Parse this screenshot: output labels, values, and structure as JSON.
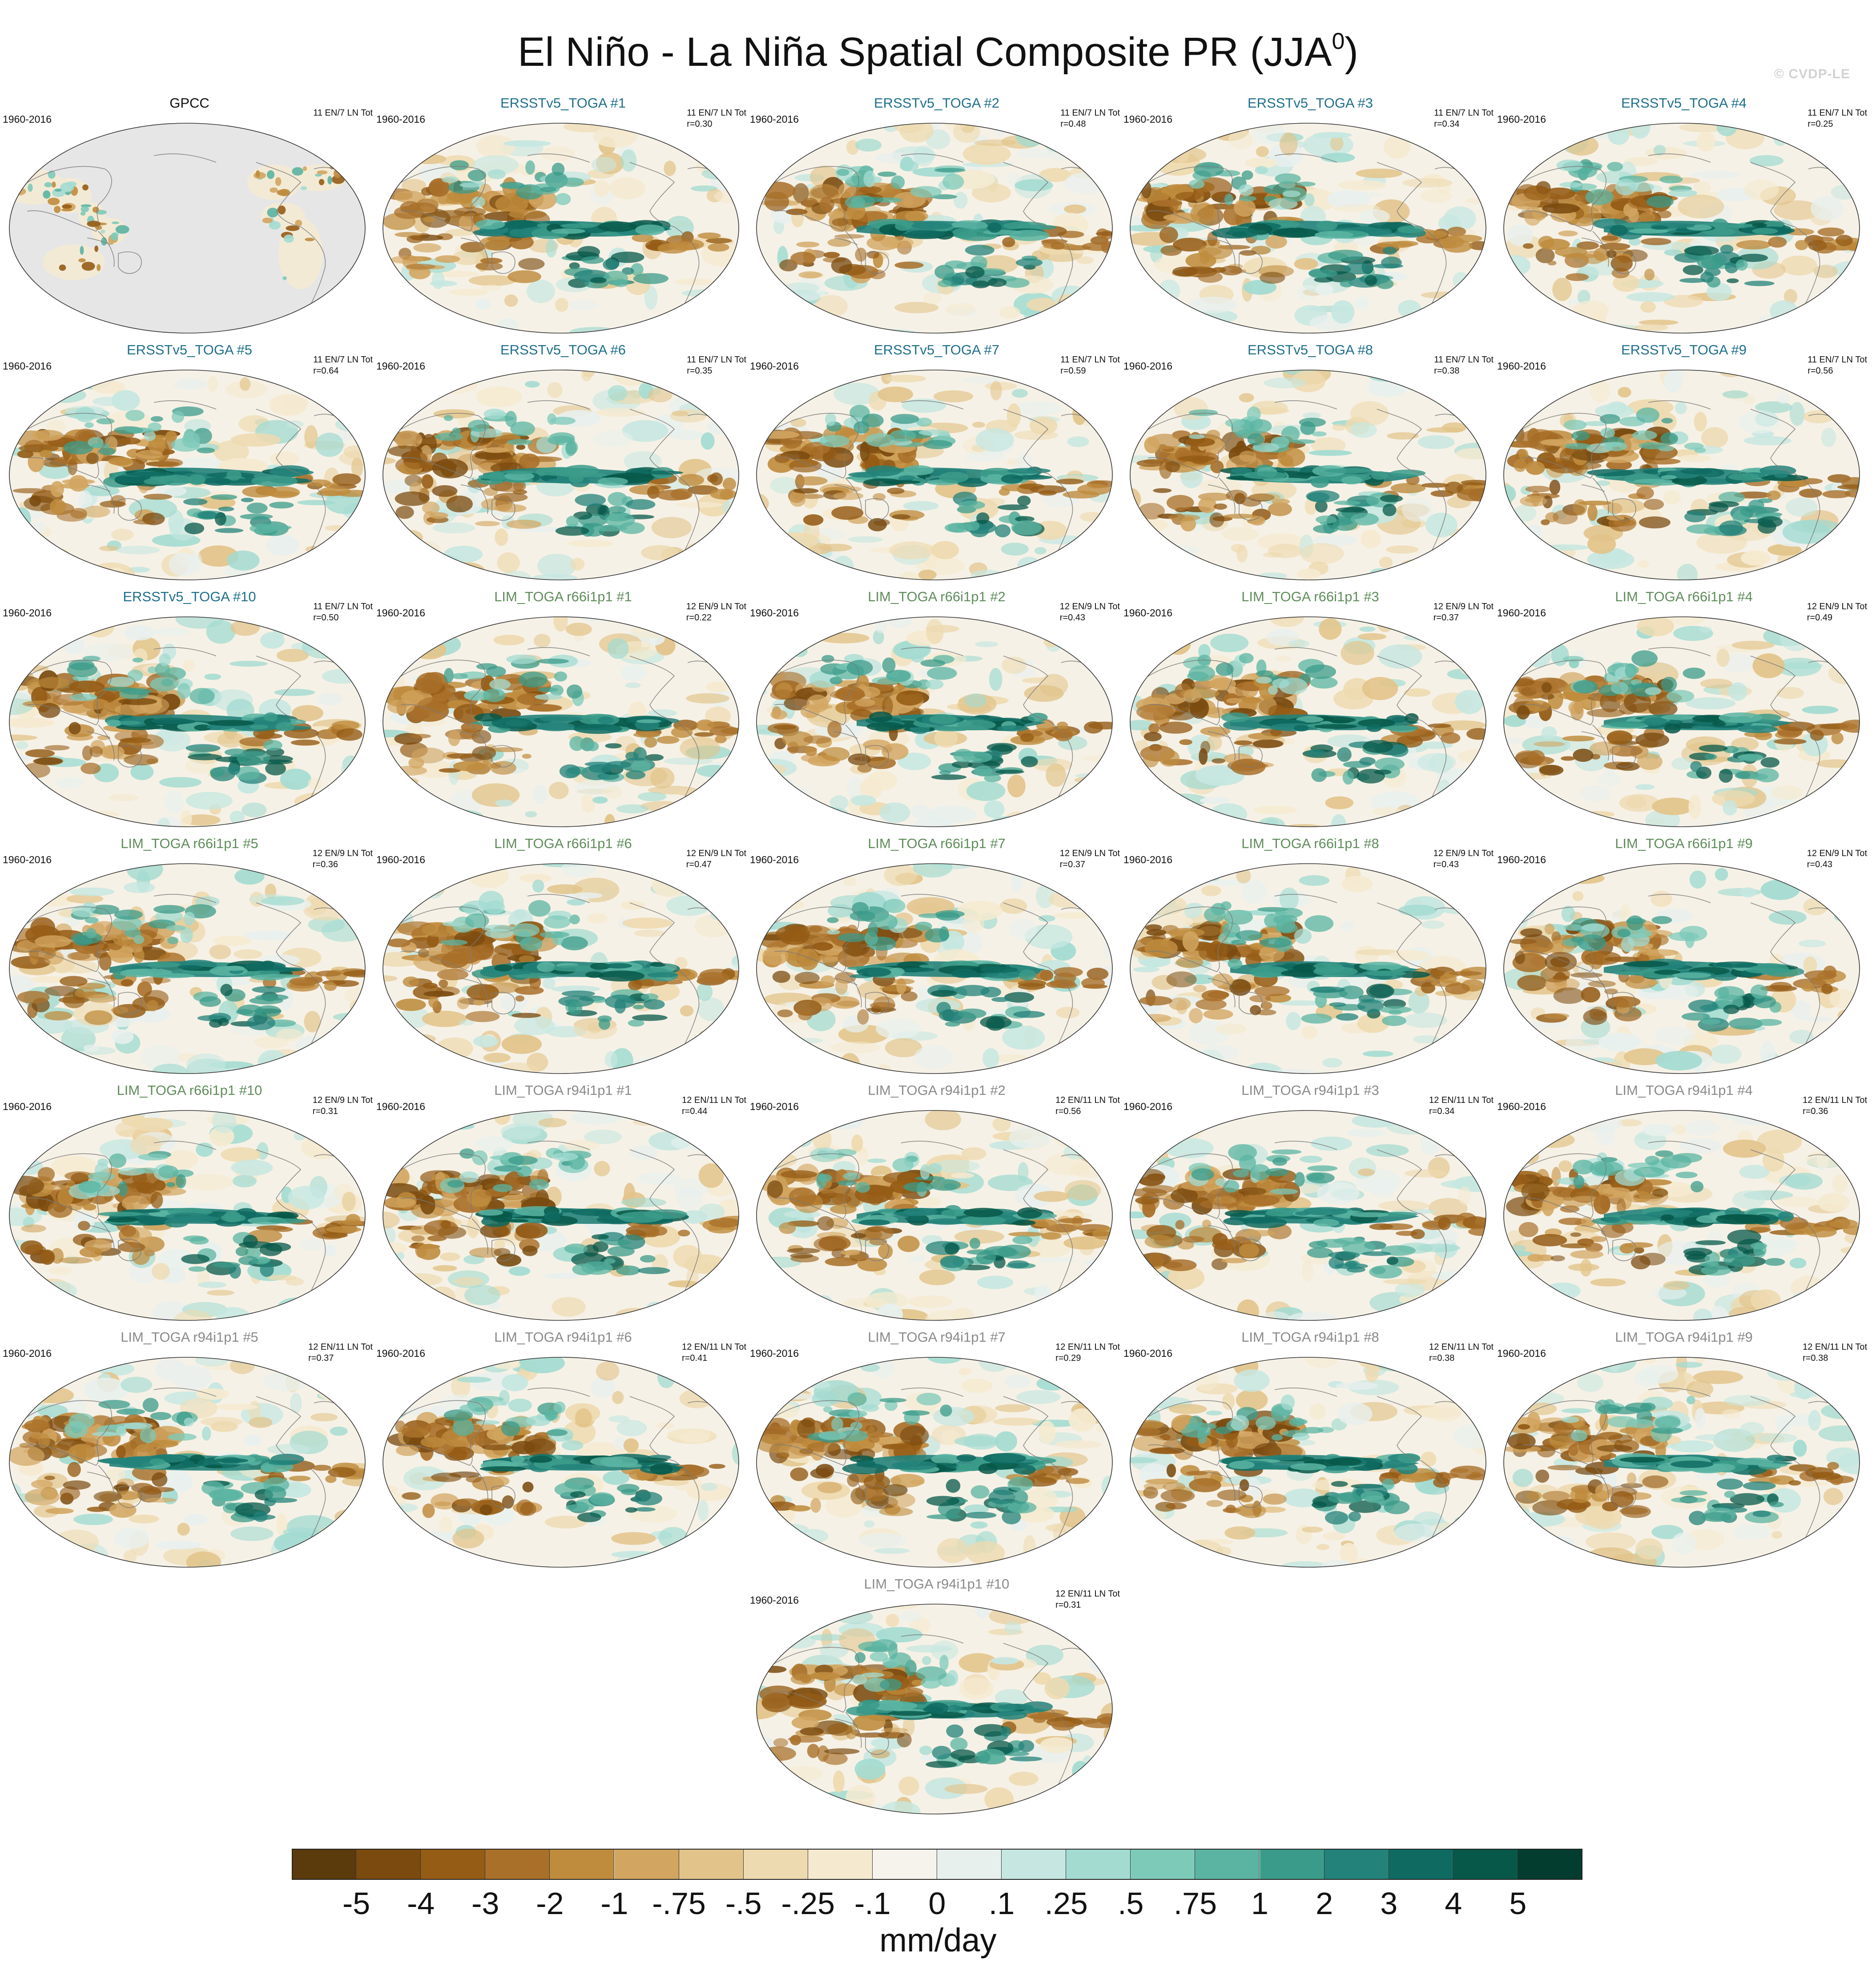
{
  "figure": {
    "title": "El Niño - La Niña Spatial Composite PR (JJA",
    "title_sup": "0",
    "title_tail": ")",
    "watermark": "© CVDP-LE"
  },
  "panels": [
    {
      "title": "GPCC",
      "period": "1960-2016",
      "counts": "11 EN/7 LN Tot",
      "corr": "",
      "group": "obs"
    },
    {
      "title": "ERSSTv5_TOGA #1",
      "period": "1960-2016",
      "counts": "11 EN/7 LN Tot",
      "corr": "r=0.30",
      "group": "ersst"
    },
    {
      "title": "ERSSTv5_TOGA #2",
      "period": "1960-2016",
      "counts": "11 EN/7 LN Tot",
      "corr": "r=0.48",
      "group": "ersst"
    },
    {
      "title": "ERSSTv5_TOGA #3",
      "period": "1960-2016",
      "counts": "11 EN/7 LN Tot",
      "corr": "r=0.34",
      "group": "ersst"
    },
    {
      "title": "ERSSTv5_TOGA #4",
      "period": "1960-2016",
      "counts": "11 EN/7 LN Tot",
      "corr": "r=0.25",
      "group": "ersst"
    },
    {
      "title": "ERSSTv5_TOGA #5",
      "period": "1960-2016",
      "counts": "11 EN/7 LN Tot",
      "corr": "r=0.64",
      "group": "ersst"
    },
    {
      "title": "ERSSTv5_TOGA #6",
      "period": "1960-2016",
      "counts": "11 EN/7 LN Tot",
      "corr": "r=0.35",
      "group": "ersst"
    },
    {
      "title": "ERSSTv5_TOGA #7",
      "period": "1960-2016",
      "counts": "11 EN/7 LN Tot",
      "corr": "r=0.59",
      "group": "ersst"
    },
    {
      "title": "ERSSTv5_TOGA #8",
      "period": "1960-2016",
      "counts": "11 EN/7 LN Tot",
      "corr": "r=0.38",
      "group": "ersst"
    },
    {
      "title": "ERSSTv5_TOGA #9",
      "period": "1960-2016",
      "counts": "11 EN/7 LN Tot",
      "corr": "r=0.56",
      "group": "ersst"
    },
    {
      "title": "ERSSTv5_TOGA #10",
      "period": "1960-2016",
      "counts": "11 EN/7 LN Tot",
      "corr": "r=0.50",
      "group": "ersst"
    },
    {
      "title": "LIM_TOGA r66i1p1 #1",
      "period": "1960-2016",
      "counts": "12 EN/9 LN Tot",
      "corr": "r=0.22",
      "group": "r66"
    },
    {
      "title": "LIM_TOGA r66i1p1 #2",
      "period": "1960-2016",
      "counts": "12 EN/9 LN Tot",
      "corr": "r=0.43",
      "group": "r66"
    },
    {
      "title": "LIM_TOGA r66i1p1 #3",
      "period": "1960-2016",
      "counts": "12 EN/9 LN Tot",
      "corr": "r=0.37",
      "group": "r66"
    },
    {
      "title": "LIM_TOGA r66i1p1 #4",
      "period": "1960-2016",
      "counts": "12 EN/9 LN Tot",
      "corr": "r=0.49",
      "group": "r66"
    },
    {
      "title": "LIM_TOGA r66i1p1 #5",
      "period": "1960-2016",
      "counts": "12 EN/9 LN Tot",
      "corr": "r=0.36",
      "group": "r66"
    },
    {
      "title": "LIM_TOGA r66i1p1 #6",
      "period": "1960-2016",
      "counts": "12 EN/9 LN Tot",
      "corr": "r=0.47",
      "group": "r66"
    },
    {
      "title": "LIM_TOGA r66i1p1 #7",
      "period": "1960-2016",
      "counts": "12 EN/9 LN Tot",
      "corr": "r=0.37",
      "group": "r66"
    },
    {
      "title": "LIM_TOGA r66i1p1 #8",
      "period": "1960-2016",
      "counts": "12 EN/9 LN Tot",
      "corr": "r=0.43",
      "group": "r66"
    },
    {
      "title": "LIM_TOGA r66i1p1 #9",
      "period": "1960-2016",
      "counts": "12 EN/9 LN Tot",
      "corr": "r=0.43",
      "group": "r66"
    },
    {
      "title": "LIM_TOGA r66i1p1 #10",
      "period": "1960-2016",
      "counts": "12 EN/9 LN Tot",
      "corr": "r=0.31",
      "group": "r66"
    },
    {
      "title": "LIM_TOGA r94i1p1 #1",
      "period": "1960-2016",
      "counts": "12 EN/11 LN Tot",
      "corr": "r=0.44",
      "group": "r94"
    },
    {
      "title": "LIM_TOGA r94i1p1 #2",
      "period": "1960-2016",
      "counts": "12 EN/11 LN Tot",
      "corr": "r=0.56",
      "group": "r94"
    },
    {
      "title": "LIM_TOGA r94i1p1 #3",
      "period": "1960-2016",
      "counts": "12 EN/11 LN Tot",
      "corr": "r=0.34",
      "group": "r94"
    },
    {
      "title": "LIM_TOGA r94i1p1 #4",
      "period": "1960-2016",
      "counts": "12 EN/11 LN Tot",
      "corr": "r=0.36",
      "group": "r94"
    },
    {
      "title": "LIM_TOGA r94i1p1 #5",
      "period": "1960-2016",
      "counts": "12 EN/11 LN Tot",
      "corr": "r=0.37",
      "group": "r94"
    },
    {
      "title": "LIM_TOGA r94i1p1 #6",
      "period": "1960-2016",
      "counts": "12 EN/11 LN Tot",
      "corr": "r=0.41",
      "group": "r94"
    },
    {
      "title": "LIM_TOGA r94i1p1 #7",
      "period": "1960-2016",
      "counts": "12 EN/11 LN Tot",
      "corr": "r=0.29",
      "group": "r94"
    },
    {
      "title": "LIM_TOGA r94i1p1 #8",
      "period": "1960-2016",
      "counts": "12 EN/11 LN Tot",
      "corr": "r=0.38",
      "group": "r94"
    },
    {
      "title": "LIM_TOGA r94i1p1 #9",
      "period": "1960-2016",
      "counts": "12 EN/11 LN Tot",
      "corr": "r=0.38",
      "group": "r94"
    },
    {
      "title": "LIM_TOGA r94i1p1 #10",
      "period": "1960-2016",
      "counts": "12 EN/11 LN Tot",
      "corr": "r=0.31",
      "group": "r94"
    }
  ],
  "group_colors": {
    "obs": "#111111",
    "ersst": "#1f6f8b",
    "r66": "#5f8d5a",
    "r94": "#8a8a8a"
  },
  "colorbar": {
    "colors": [
      "#5b3a0c",
      "#7a4a0f",
      "#955c16",
      "#a9702a",
      "#bf8c3e",
      "#d2a560",
      "#e2c48a",
      "#eedab0",
      "#f5ead0",
      "#f6f3ec",
      "#e8f0ee",
      "#c6e7e1",
      "#a3dbd1",
      "#7ecab9",
      "#5bb4a2",
      "#3b9b8a",
      "#23827a",
      "#0f6b62",
      "#075849",
      "#033d30"
    ],
    "ticks": [
      "-5",
      "-4",
      "-3",
      "-2",
      "-1",
      "-.75",
      "-.5",
      "-.25",
      "-.1",
      "0",
      ".1",
      ".25",
      ".5",
      ".75",
      "1",
      "2",
      "3",
      "4",
      "5"
    ],
    "units": "mm/day"
  }
}
